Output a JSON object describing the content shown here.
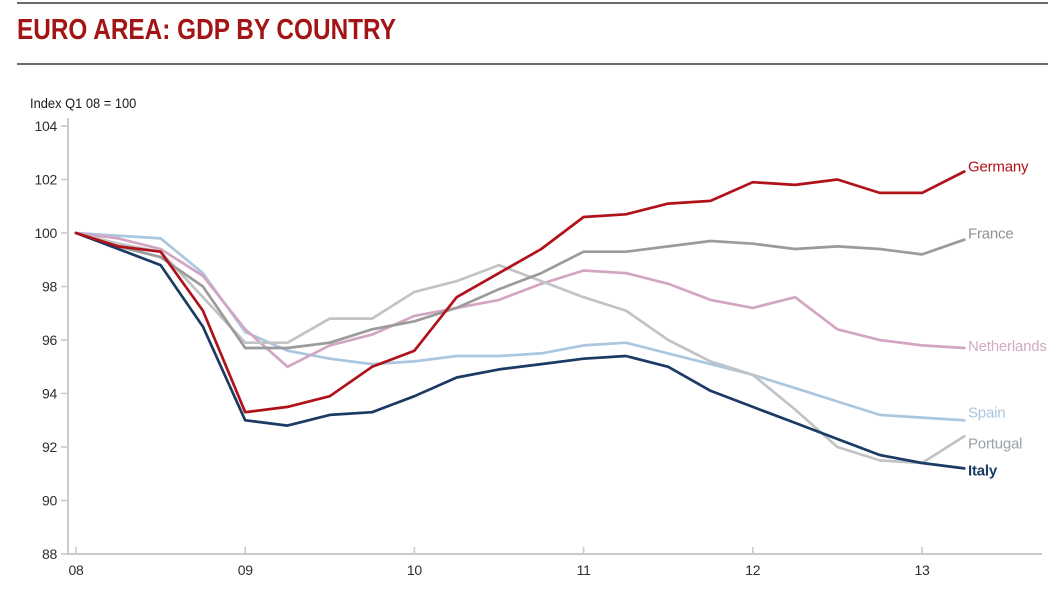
{
  "header": {
    "title": "EURO AREA: GDP BY COUNTRY",
    "subtitle": "Index Q1 08 = 100"
  },
  "colors": {
    "title": "#a31515",
    "rule": "#6a6b6d",
    "axis": "#c9cacd",
    "tick_text": "#2f2f30",
    "background": "#ffffff"
  },
  "chart_data": {
    "type": "line",
    "title": "EURO AREA: GDP BY COUNTRY",
    "note": "Index Q1 08 = 100",
    "x_unit": "quarterly, Q1 2008 to Q2 2013",
    "x_tick_labels": [
      "08",
      "09",
      "10",
      "11",
      "12",
      "13"
    ],
    "quarters_per_year": 4,
    "y_ticks": [
      88,
      90,
      92,
      94,
      96,
      98,
      100,
      102,
      104
    ],
    "ylim": [
      88,
      104
    ],
    "grid": false,
    "legend_position": "right of line ends, colored text labels",
    "axis_color": "#c9cacd",
    "draw_order": [
      3,
      2,
      4,
      1,
      5,
      0
    ],
    "series": [
      {
        "name": "Germany",
        "color": "#b0121a",
        "label_color": "#b0121a",
        "label_dy": -5,
        "bold": false,
        "values": [
          100,
          99.5,
          99.3,
          97.1,
          93.3,
          93.5,
          93.9,
          95.0,
          95.6,
          97.6,
          98.5,
          99.4,
          100.6,
          100.7,
          101.1,
          101.2,
          101.9,
          101.8,
          102.0,
          101.5,
          101.5,
          102.3
        ]
      },
      {
        "name": "France",
        "color": "#9b9b9b",
        "label_color": "#8f9296",
        "label_dy": -6,
        "bold": false,
        "values": [
          100,
          99.5,
          99.1,
          98.0,
          95.7,
          95.7,
          95.9,
          96.4,
          96.7,
          97.2,
          97.9,
          98.5,
          99.3,
          99.3,
          99.5,
          99.7,
          99.6,
          99.4,
          99.5,
          99.4,
          99.2,
          99.75
        ]
      },
      {
        "name": "Netherlands",
        "color": "#d2a6c2",
        "label_color": "#d4a9c6",
        "label_dy": -2,
        "bold": false,
        "values": [
          100,
          99.8,
          99.4,
          98.4,
          96.4,
          95.0,
          95.8,
          96.2,
          96.9,
          97.2,
          97.5,
          98.1,
          98.6,
          98.5,
          98.1,
          97.5,
          97.2,
          97.6,
          96.4,
          96.0,
          95.8,
          95.7
        ]
      },
      {
        "name": "Spain",
        "color": "#abc7df",
        "label_color": "#a9c6de",
        "label_dy": -8,
        "bold": false,
        "values": [
          100,
          99.9,
          99.8,
          98.5,
          96.3,
          95.6,
          95.3,
          95.1,
          95.2,
          95.4,
          95.4,
          95.5,
          95.8,
          95.9,
          95.5,
          95.1,
          94.7,
          94.2,
          93.7,
          93.2,
          93.1,
          93.0
        ]
      },
      {
        "name": "Portugal",
        "color": "#c2c3c7",
        "label_color": "#9aa0a6",
        "label_dy": 7,
        "bold": false,
        "values": [
          100,
          99.6,
          99.3,
          97.6,
          95.9,
          95.9,
          96.8,
          96.8,
          97.8,
          98.2,
          98.8,
          98.2,
          97.6,
          97.1,
          96.0,
          95.2,
          94.7,
          93.4,
          92.0,
          91.5,
          91.4,
          92.4
        ]
      },
      {
        "name": "Italy",
        "color": "#1b3a64",
        "label_color": "#1b3a64",
        "label_dy": 2,
        "bold": true,
        "values": [
          100,
          99.4,
          98.8,
          96.5,
          93.0,
          92.8,
          93.2,
          93.3,
          93.9,
          94.6,
          94.9,
          95.1,
          95.3,
          95.4,
          95.0,
          94.1,
          93.5,
          92.9,
          92.3,
          91.7,
          91.4,
          91.2
        ]
      }
    ]
  }
}
